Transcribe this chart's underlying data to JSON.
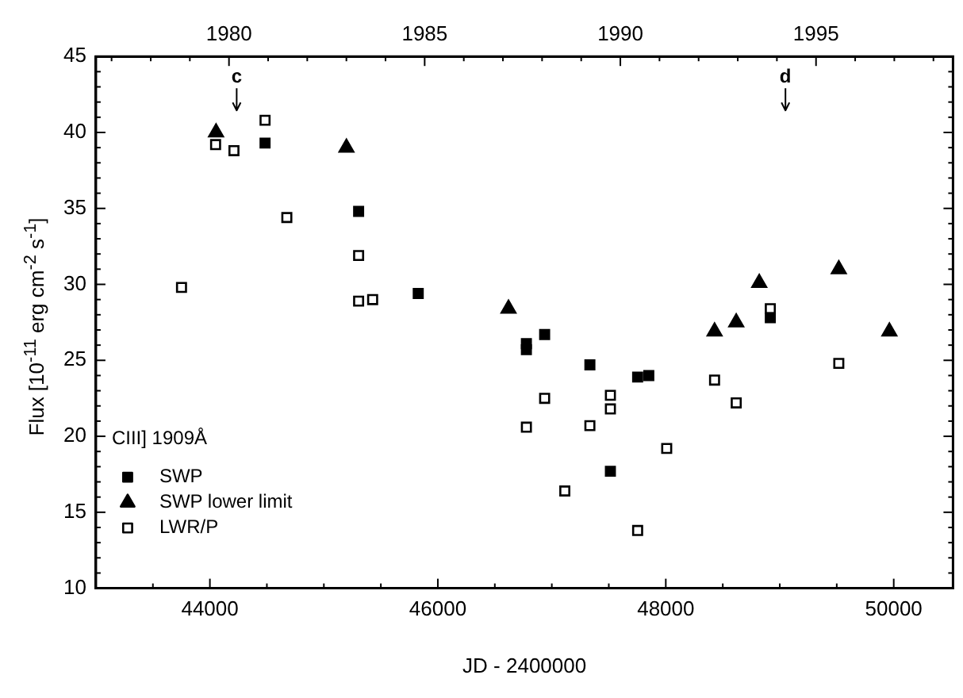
{
  "chart_data": {
    "type": "scatter",
    "xlabel": "JD - 2400000",
    "ylabel": "Flux [10$^{-11}$ erg cm$^{-2}$ s$^{-1}$]",
    "legend_title": "CIII] 1909Å",
    "legend": "bottom left",
    "grid": false,
    "xlim": [
      43000,
      50520
    ],
    "xticks": [
      {
        "value": 43500,
        "label": null
      },
      44000,
      {
        "value": 44500,
        "label": null
      },
      {
        "value": 45000,
        "label": null
      },
      {
        "value": 45500,
        "label": null
      },
      46000,
      {
        "value": 46500,
        "label": null
      },
      {
        "value": 47000,
        "label": null
      },
      {
        "value": 47500,
        "label": null
      },
      48000,
      {
        "value": 48500,
        "label": null
      },
      {
        "value": 49000,
        "label": null
      },
      {
        "value": 49500,
        "label": null
      },
      50000
    ],
    "x2lim": [
      1976.6,
      1998.5
    ],
    "x2ticks": [
      {
        "value": 1977,
        "label": null
      },
      {
        "value": 1978,
        "label": null
      },
      {
        "value": 1979,
        "label": null
      },
      1980,
      {
        "value": 1981,
        "label": null
      },
      {
        "value": 1982,
        "label": null
      },
      {
        "value": 1983,
        "label": null
      },
      {
        "value": 1984,
        "label": null
      },
      1985,
      {
        "value": 1986,
        "label": null
      },
      {
        "value": 1987,
        "label": null
      },
      {
        "value": 1988,
        "label": null
      },
      {
        "value": 1989,
        "label": null
      },
      1990,
      {
        "value": 1991,
        "label": null
      },
      {
        "value": 1992,
        "label": null
      },
      {
        "value": 1993,
        "label": null
      },
      {
        "value": 1994,
        "label": null
      },
      1995,
      {
        "value": 1996,
        "label": null
      },
      {
        "value": 1997,
        "label": null
      },
      {
        "value": 1998,
        "label": null
      }
    ],
    "ylim": [
      10,
      45
    ],
    "yticks": [
      10,
      {
        "value": 11,
        "label": null
      },
      {
        "value": 12,
        "label": null
      },
      {
        "value": 13,
        "label": null
      },
      {
        "value": 14,
        "label": null
      },
      15,
      {
        "value": 16,
        "label": null
      },
      {
        "value": 17,
        "label": null
      },
      {
        "value": 18,
        "label": null
      },
      {
        "value": 19,
        "label": null
      },
      20,
      {
        "value": 21,
        "label": null
      },
      {
        "value": 22,
        "label": null
      },
      {
        "value": 23,
        "label": null
      },
      {
        "value": 24,
        "label": null
      },
      25,
      {
        "value": 26,
        "label": null
      },
      {
        "value": 27,
        "label": null
      },
      {
        "value": 28,
        "label": null
      },
      {
        "value": 29,
        "label": null
      },
      30,
      {
        "value": 31,
        "label": null
      },
      {
        "value": 32,
        "label": null
      },
      {
        "value": 33,
        "label": null
      },
      {
        "value": 34,
        "label": null
      },
      35,
      {
        "value": 36,
        "label": null
      },
      {
        "value": 37,
        "label": null
      },
      {
        "value": 38,
        "label": null
      },
      {
        "value": 39,
        "label": null
      },
      40,
      {
        "value": 41,
        "label": null
      },
      {
        "value": 42,
        "label": null
      },
      {
        "value": 43,
        "label": null
      },
      {
        "value": 44,
        "label": null
      },
      45
    ],
    "ref_lines": [
      {
        "axis": "x",
        "value": 44235,
        "label": "c"
      },
      {
        "axis": "x",
        "value": 49050,
        "label": "d"
      }
    ],
    "series": [
      {
        "name": "SWP",
        "color": "#000000",
        "marker": "square",
        "x": [
          44484,
          45305,
          45828,
          46777,
          46777,
          46937,
          47334,
          47514,
          47753,
          47851,
          48917
        ],
        "values": [
          39.3,
          34.8,
          29.4,
          26.1,
          25.7,
          26.7,
          24.7,
          17.7,
          23.9,
          24.0,
          27.8
        ]
      },
      {
        "name": "SWP lower limit",
        "color": "#000000",
        "marker": "triangle",
        "x": [
          44054,
          45198,
          46620,
          48428,
          48618,
          48820,
          49518,
          49962
        ],
        "values": [
          40.0,
          39.0,
          28.4,
          26.9,
          27.5,
          30.1,
          31.0,
          26.9
        ]
      },
      {
        "name": "LWR/P",
        "color": "#ffffff",
        "marker": "square",
        "x": [
          43751,
          44050,
          44211,
          44484,
          44675,
          45305,
          45305,
          45428,
          46777,
          46937,
          47114,
          47334,
          47514,
          47514,
          47753,
          48008,
          48428,
          48618,
          48917,
          49518
        ],
        "values": [
          29.8,
          39.2,
          38.8,
          40.8,
          34.4,
          31.9,
          28.9,
          29.0,
          20.6,
          22.5,
          16.4,
          20.7,
          22.7,
          21.8,
          13.8,
          19.2,
          23.7,
          22.2,
          28.4,
          24.8
        ]
      }
    ]
  }
}
